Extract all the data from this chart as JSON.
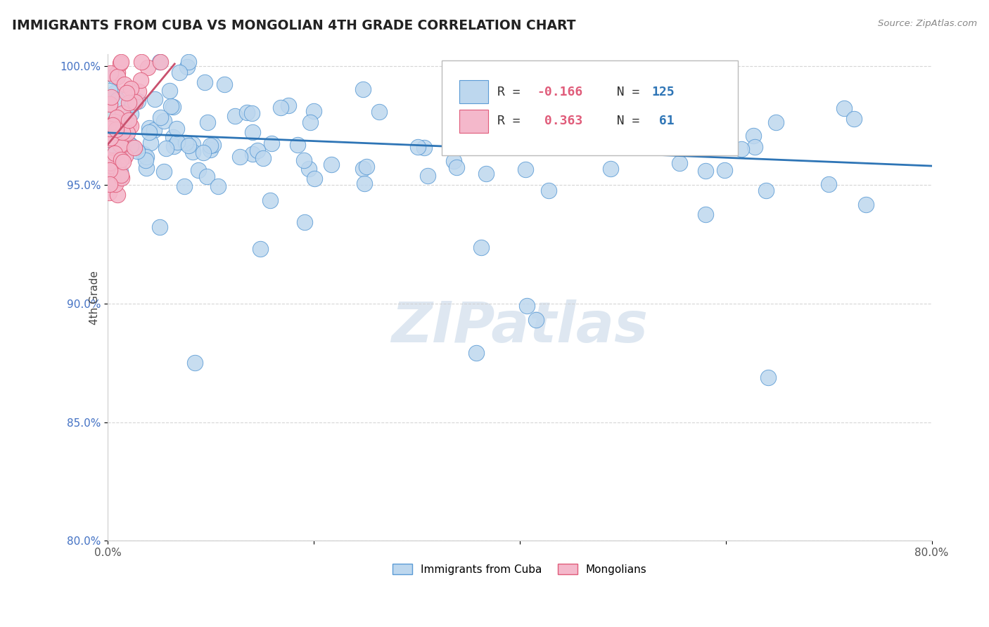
{
  "title": "IMMIGRANTS FROM CUBA VS MONGOLIAN 4TH GRADE CORRELATION CHART",
  "source_text": "Source: ZipAtlas.com",
  "ylabel": "4th Grade",
  "xlim": [
    0.0,
    0.8
  ],
  "ylim": [
    0.8,
    1.005
  ],
  "xticks": [
    0.0,
    0.2,
    0.4,
    0.6,
    0.8
  ],
  "xtick_labels": [
    "0.0%",
    "",
    "",
    "",
    "80.0%"
  ],
  "yticks": [
    0.8,
    0.85,
    0.9,
    0.95,
    1.0
  ],
  "ytick_labels": [
    "80.0%",
    "85.0%",
    "90.0%",
    "95.0%",
    "100.0%"
  ],
  "blue_color": "#bdd7ee",
  "blue_edge_color": "#5b9bd5",
  "pink_color": "#f4b8cb",
  "pink_edge_color": "#e05c7a",
  "trend_blue_color": "#2e75b6",
  "trend_pink_color": "#c9516e",
  "ytick_color": "#4472c4",
  "xtick_color": "#555555",
  "grid_color": "#cccccc",
  "watermark_text": "ZIPatlas",
  "watermark_color": "#c8d8e8",
  "legend_r_color": "#e05c7a",
  "legend_n_color": "#2e75b6",
  "blue_trend_x0": 0.0,
  "blue_trend_y0": 0.972,
  "blue_trend_x1": 0.8,
  "blue_trend_y1": 0.958,
  "pink_trend_x0": 0.0,
  "pink_trend_y0": 0.967,
  "pink_trend_x1": 0.065,
  "pink_trend_y1": 1.001
}
